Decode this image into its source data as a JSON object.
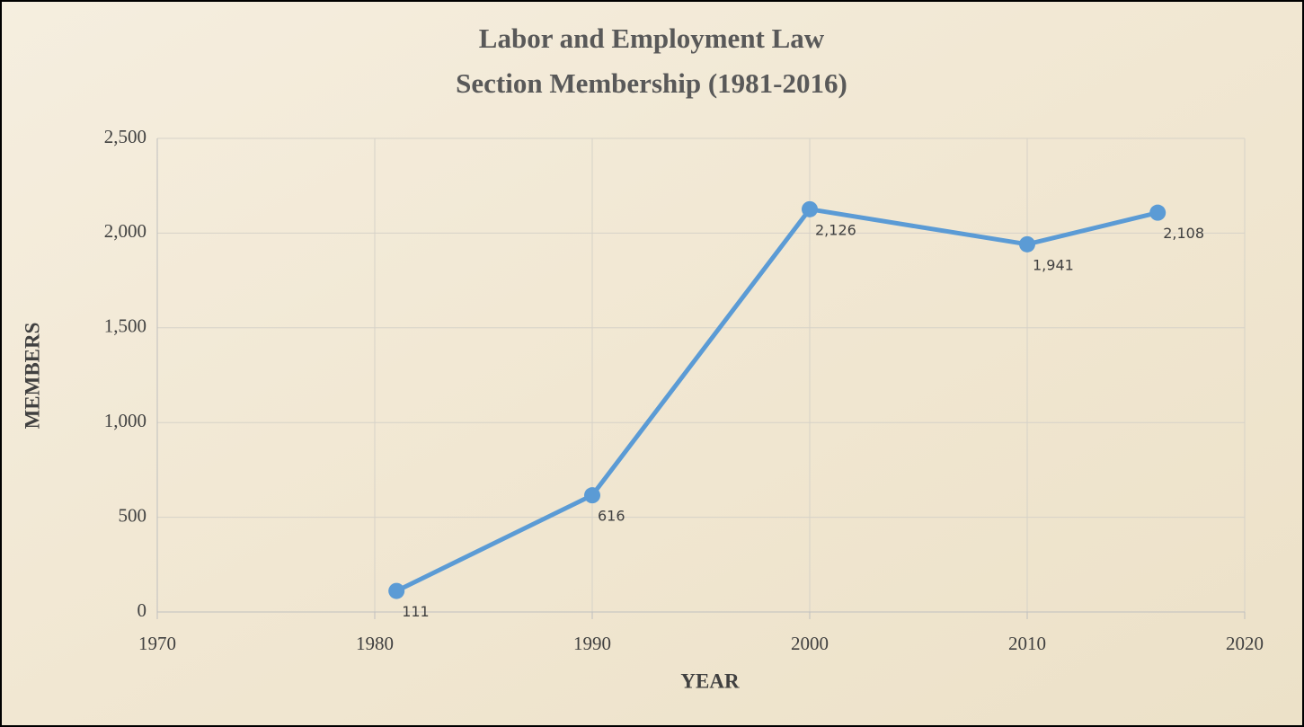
{
  "chart_data": {
    "type": "line",
    "title": "Labor and Employment Law",
    "subtitle": "Section Membership (1981-2016)",
    "x_label": "YEAR",
    "y_label": "MEMBERS",
    "x": [
      1981,
      1990,
      2000,
      2010,
      2016
    ],
    "series": [
      {
        "name": "Members",
        "color": "#5b9bd5",
        "values": [
          111,
          616,
          2126,
          1941,
          2108
        ],
        "value_labels": [
          "111",
          "616",
          "2,126",
          "1,941",
          "2,108"
        ]
      }
    ],
    "xlim": [
      1970,
      2020
    ],
    "xticks": [
      1970,
      1980,
      1990,
      2000,
      2010,
      2020
    ],
    "ylim": [
      0,
      2500
    ],
    "yticks": [
      0,
      500,
      {
        "value": 1000,
        "label": "1,000"
      },
      {
        "value": 1500,
        "label": "1,500"
      },
      {
        "value": 2000,
        "label": "2,000"
      },
      {
        "value": 2500,
        "label": "2,500"
      }
    ],
    "grid": true
  }
}
